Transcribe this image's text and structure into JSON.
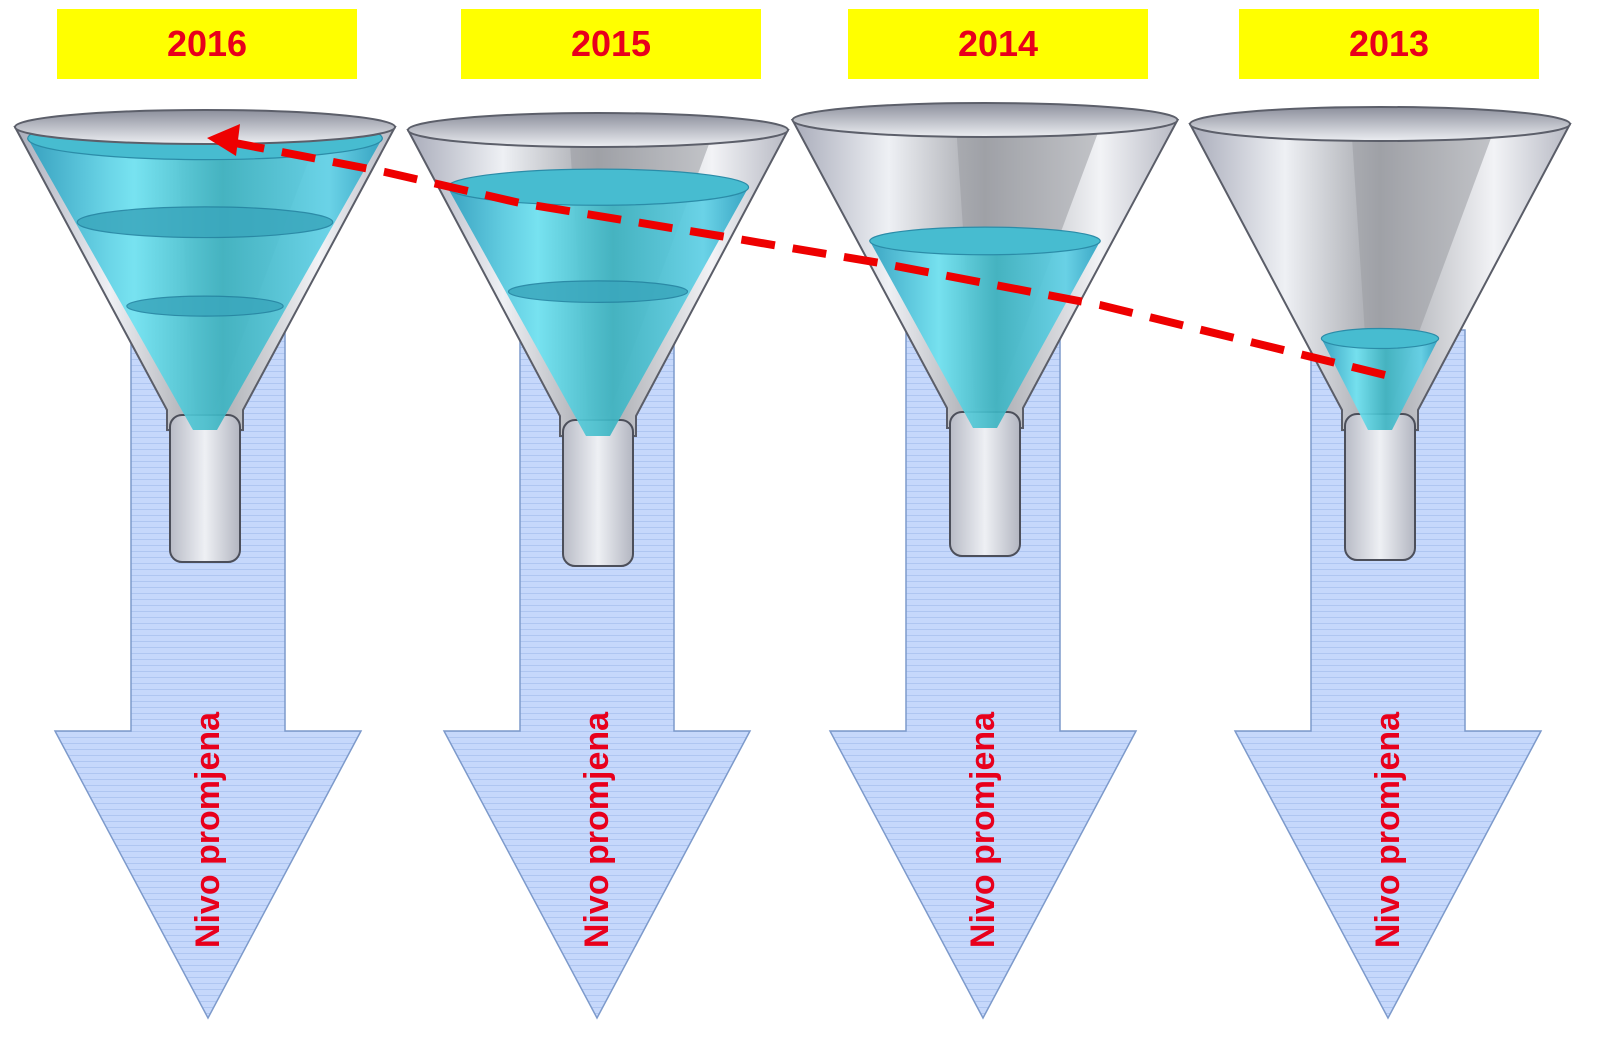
{
  "colors": {
    "label_bg": "#ffff00",
    "label_text": "#e8001c",
    "arrow_text": "#e8001c",
    "arrow_fill": "#c3d6fb",
    "arrow_stroke": "#7d9acb",
    "liquid": "#3ab6c8",
    "trend_line": "#ee0000"
  },
  "funnels": [
    {
      "year": "2016",
      "arrow_label": "Nivo promjena",
      "fill_level": 0.96,
      "bands": 3
    },
    {
      "year": "2015",
      "arrow_label": "Nivo promjena",
      "fill_level": 0.8,
      "bands": 2
    },
    {
      "year": "2014",
      "arrow_label": "Nivo promjena",
      "fill_level": 0.58,
      "bands": 1
    },
    {
      "year": "2013",
      "arrow_label": "Nivo promjena",
      "fill_level": 0.25,
      "bands": 1
    }
  ],
  "trend_line": {
    "style": "dashed",
    "direction": "from 2013 toward 2016",
    "arrowhead": "left"
  }
}
